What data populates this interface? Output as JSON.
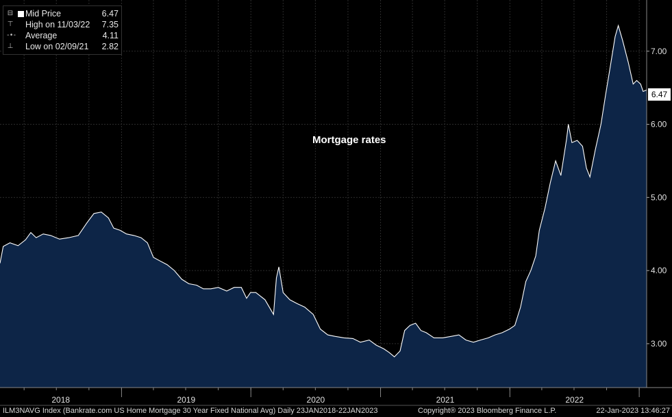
{
  "legend": {
    "rows": [
      {
        "label": "Mid Price",
        "value": "6.47",
        "glyph": "⊟"
      },
      {
        "label": "High on 11/03/22",
        "value": "7.35",
        "glyph": "⊤"
      },
      {
        "label": "Average",
        "value": "4.11",
        "glyph": "-•-"
      },
      {
        "label": "Low on 02/09/21",
        "value": "2.82",
        "glyph": "⊥"
      }
    ]
  },
  "annotation": "Mortgage rates",
  "last_value_tag": "6.47",
  "footer": {
    "left": "ILM3NAVG Index (Bankrate.com US Home Mortgage 30 Year Fixed National Avg)  Daily 23JAN2018-22JAN2023",
    "center": "Copyright® 2023 Bloomberg Finance L.P.",
    "right": "22-Jan-2023 13:46:27"
  },
  "colors": {
    "background": "#000000",
    "area_fill": "#0d2547",
    "line": "#ffffff",
    "grid": "#2c2c2c"
  },
  "chart_data": {
    "type": "area",
    "title": "",
    "x_axis": {
      "type": "date",
      "range": [
        "2018-01-23",
        "2023-01-22"
      ],
      "tick_labels": [
        "2018",
        "2019",
        "2020",
        "2021",
        "2022"
      ]
    },
    "y_axis": {
      "position": "right",
      "ylim": [
        2.4,
        7.7
      ],
      "ticks": [
        3.0,
        4.0,
        5.0,
        6.0,
        7.0
      ],
      "tick_labels": [
        "3.00",
        "4.00",
        "5.00",
        "6.00",
        "7.00"
      ]
    },
    "grid": true,
    "series": [
      {
        "name": "Mid Price",
        "points": [
          [
            "2018-01-23",
            4.1
          ],
          [
            "2018-02-01",
            4.33
          ],
          [
            "2018-02-20",
            4.38
          ],
          [
            "2018-03-15",
            4.34
          ],
          [
            "2018-04-05",
            4.42
          ],
          [
            "2018-04-20",
            4.52
          ],
          [
            "2018-05-05",
            4.45
          ],
          [
            "2018-05-25",
            4.5
          ],
          [
            "2018-06-15",
            4.48
          ],
          [
            "2018-07-10",
            4.43
          ],
          [
            "2018-08-05",
            4.45
          ],
          [
            "2018-09-01",
            4.48
          ],
          [
            "2018-09-25",
            4.65
          ],
          [
            "2018-10-15",
            4.78
          ],
          [
            "2018-11-05",
            4.8
          ],
          [
            "2018-11-25",
            4.72
          ],
          [
            "2018-12-10",
            4.58
          ],
          [
            "2018-12-28",
            4.55
          ],
          [
            "2019-01-15",
            4.5
          ],
          [
            "2019-02-05",
            4.48
          ],
          [
            "2019-02-25",
            4.45
          ],
          [
            "2019-03-15",
            4.38
          ],
          [
            "2019-04-01",
            4.18
          ],
          [
            "2019-04-20",
            4.13
          ],
          [
            "2019-05-10",
            4.08
          ],
          [
            "2019-05-30",
            4.0
          ],
          [
            "2019-06-20",
            3.88
          ],
          [
            "2019-07-10",
            3.82
          ],
          [
            "2019-08-01",
            3.8
          ],
          [
            "2019-08-20",
            3.75
          ],
          [
            "2019-09-10",
            3.75
          ],
          [
            "2019-10-01",
            3.77
          ],
          [
            "2019-10-25",
            3.72
          ],
          [
            "2019-11-15",
            3.77
          ],
          [
            "2019-12-05",
            3.77
          ],
          [
            "2019-12-20",
            3.62
          ],
          [
            "2019-12-31",
            3.7
          ],
          [
            "2020-01-15",
            3.7
          ],
          [
            "2020-02-10",
            3.6
          ],
          [
            "2020-03-05",
            3.4
          ],
          [
            "2020-03-13",
            3.9
          ],
          [
            "2020-03-20",
            4.05
          ],
          [
            "2020-04-01",
            3.7
          ],
          [
            "2020-04-20",
            3.6
          ],
          [
            "2020-05-10",
            3.55
          ],
          [
            "2020-06-01",
            3.5
          ],
          [
            "2020-06-25",
            3.4
          ],
          [
            "2020-07-15",
            3.2
          ],
          [
            "2020-08-05",
            3.12
          ],
          [
            "2020-08-25",
            3.1
          ],
          [
            "2020-09-20",
            3.08
          ],
          [
            "2020-10-15",
            3.07
          ],
          [
            "2020-11-05",
            3.02
          ],
          [
            "2020-11-30",
            3.05
          ],
          [
            "2020-12-20",
            2.98
          ],
          [
            "2021-01-10",
            2.93
          ],
          [
            "2021-01-25",
            2.88
          ],
          [
            "2021-02-09",
            2.82
          ],
          [
            "2021-02-25",
            2.9
          ],
          [
            "2021-03-10",
            3.18
          ],
          [
            "2021-03-25",
            3.25
          ],
          [
            "2021-04-10",
            3.28
          ],
          [
            "2021-04-25",
            3.18
          ],
          [
            "2021-05-10",
            3.15
          ],
          [
            "2021-06-01",
            3.08
          ],
          [
            "2021-06-25",
            3.08
          ],
          [
            "2021-07-20",
            3.1
          ],
          [
            "2021-08-10",
            3.12
          ],
          [
            "2021-08-30",
            3.05
          ],
          [
            "2021-09-20",
            3.02
          ],
          [
            "2021-10-10",
            3.05
          ],
          [
            "2021-11-01",
            3.08
          ],
          [
            "2021-11-20",
            3.12
          ],
          [
            "2021-12-10",
            3.15
          ],
          [
            "2021-12-31",
            3.2
          ],
          [
            "2022-01-15",
            3.25
          ],
          [
            "2022-01-31",
            3.5
          ],
          [
            "2022-02-15",
            3.85
          ],
          [
            "2022-03-01",
            4.0
          ],
          [
            "2022-03-15",
            4.2
          ],
          [
            "2022-03-25",
            4.55
          ],
          [
            "2022-04-10",
            4.85
          ],
          [
            "2022-04-25",
            5.2
          ],
          [
            "2022-05-10",
            5.5
          ],
          [
            "2022-05-25",
            5.3
          ],
          [
            "2022-06-10",
            5.8
          ],
          [
            "2022-06-15",
            6.0
          ],
          [
            "2022-06-25",
            5.75
          ],
          [
            "2022-07-10",
            5.78
          ],
          [
            "2022-07-25",
            5.7
          ],
          [
            "2022-08-05",
            5.4
          ],
          [
            "2022-08-15",
            5.28
          ],
          [
            "2022-08-30",
            5.65
          ],
          [
            "2022-09-15",
            6.0
          ],
          [
            "2022-09-28",
            6.4
          ],
          [
            "2022-10-10",
            6.75
          ],
          [
            "2022-10-25",
            7.2
          ],
          [
            "2022-11-03",
            7.35
          ],
          [
            "2022-11-15",
            7.15
          ],
          [
            "2022-12-01",
            6.85
          ],
          [
            "2022-12-15",
            6.55
          ],
          [
            "2022-12-25",
            6.6
          ],
          [
            "2023-01-05",
            6.55
          ],
          [
            "2023-01-12",
            6.45
          ],
          [
            "2023-01-22",
            6.47
          ]
        ]
      }
    ]
  }
}
